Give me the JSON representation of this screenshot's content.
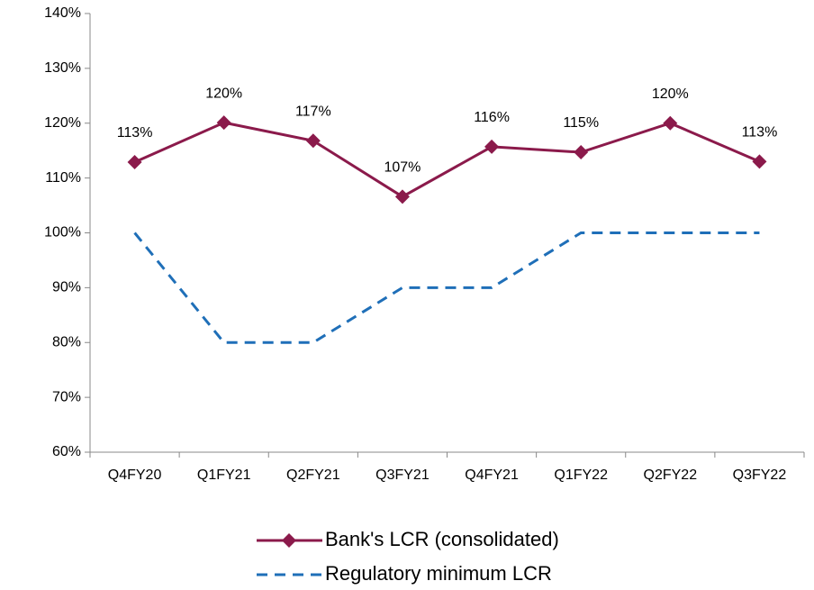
{
  "chart_data": {
    "type": "line",
    "categories": [
      "Q4FY20",
      "Q1FY21",
      "Q2FY21",
      "Q3FY21",
      "Q4FY21",
      "Q1FY22",
      "Q2FY22",
      "Q3FY22"
    ],
    "series": [
      {
        "name": "Bank's LCR (consolidated)",
        "color": "#8b1a4b",
        "style": "solid",
        "marker": "diamond",
        "values": [
          112.9,
          120.1,
          116.8,
          106.6,
          115.7,
          114.7,
          120.0,
          113.0
        ],
        "value_labels": [
          "113%",
          "120%",
          "117%",
          "107%",
          "116%",
          "115%",
          "120%",
          "113%"
        ]
      },
      {
        "name": "Regulatory minimum LCR",
        "color": "#1f6fb8",
        "style": "dashed",
        "values": [
          100,
          80,
          80,
          90,
          90,
          100,
          100,
          100
        ]
      }
    ],
    "ylim": [
      60,
      140
    ],
    "yticks": [
      {
        "value": 60,
        "label": "60%"
      },
      {
        "value": 70,
        "label": "70%"
      },
      {
        "value": 80,
        "label": "80%"
      },
      {
        "value": 90,
        "label": "90%"
      },
      {
        "value": 100,
        "label": "100%"
      },
      {
        "value": 110,
        "label": "110%"
      },
      {
        "value": 120,
        "label": "120%"
      },
      {
        "value": 130,
        "label": "130%"
      },
      {
        "value": 140,
        "label": "140%"
      }
    ],
    "grid": false,
    "legend": "bottom"
  }
}
